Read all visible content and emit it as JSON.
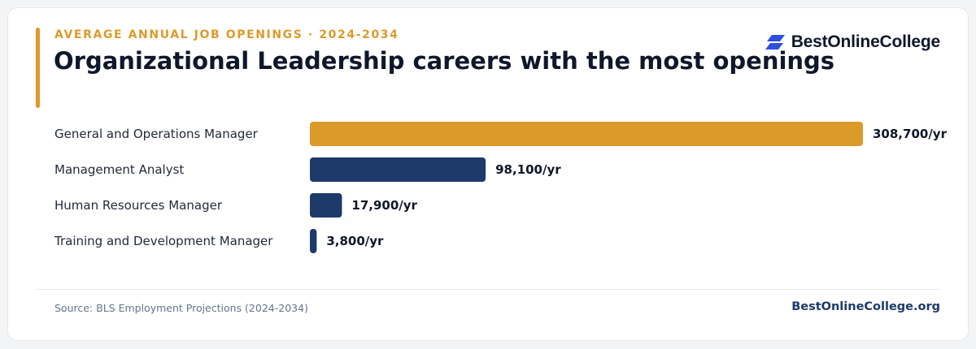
{
  "header": {
    "eyebrow": "AVERAGE ANNUAL JOB OPENINGS · 2024-2034",
    "title": "Organizational Leadership careers with the most openings"
  },
  "brand": {
    "name": "BestOnlineCollege",
    "logo_icon": "stacked-parallelogram-logo-icon",
    "logo_color": "#2f4fe0"
  },
  "chart_data": {
    "type": "bar",
    "orientation": "horizontal",
    "categories": [
      "General and Operations Manager",
      "Management Analyst",
      "Human Resources Manager",
      "Training and Development Manager"
    ],
    "values": [
      308700,
      98100,
      17900,
      3800
    ],
    "value_labels": [
      "308,700/yr",
      "98,100/yr",
      "17,900/yr",
      "3,800/yr"
    ],
    "bar_colors": [
      "#dc9a2a",
      "#1e3a6b",
      "#1e3a6b",
      "#1e3a6b"
    ],
    "title": "Organizational Leadership careers with the most openings",
    "xlabel": "",
    "ylabel": "",
    "grid": false,
    "legend": "none"
  },
  "footer": {
    "source": "Source: BLS Employment Projections (2024-2034)",
    "site": "BestOnlineCollege.org"
  },
  "colors": {
    "accent": "#dc9a2a",
    "navy": "#1e3a6b",
    "text": "#0f172a"
  }
}
